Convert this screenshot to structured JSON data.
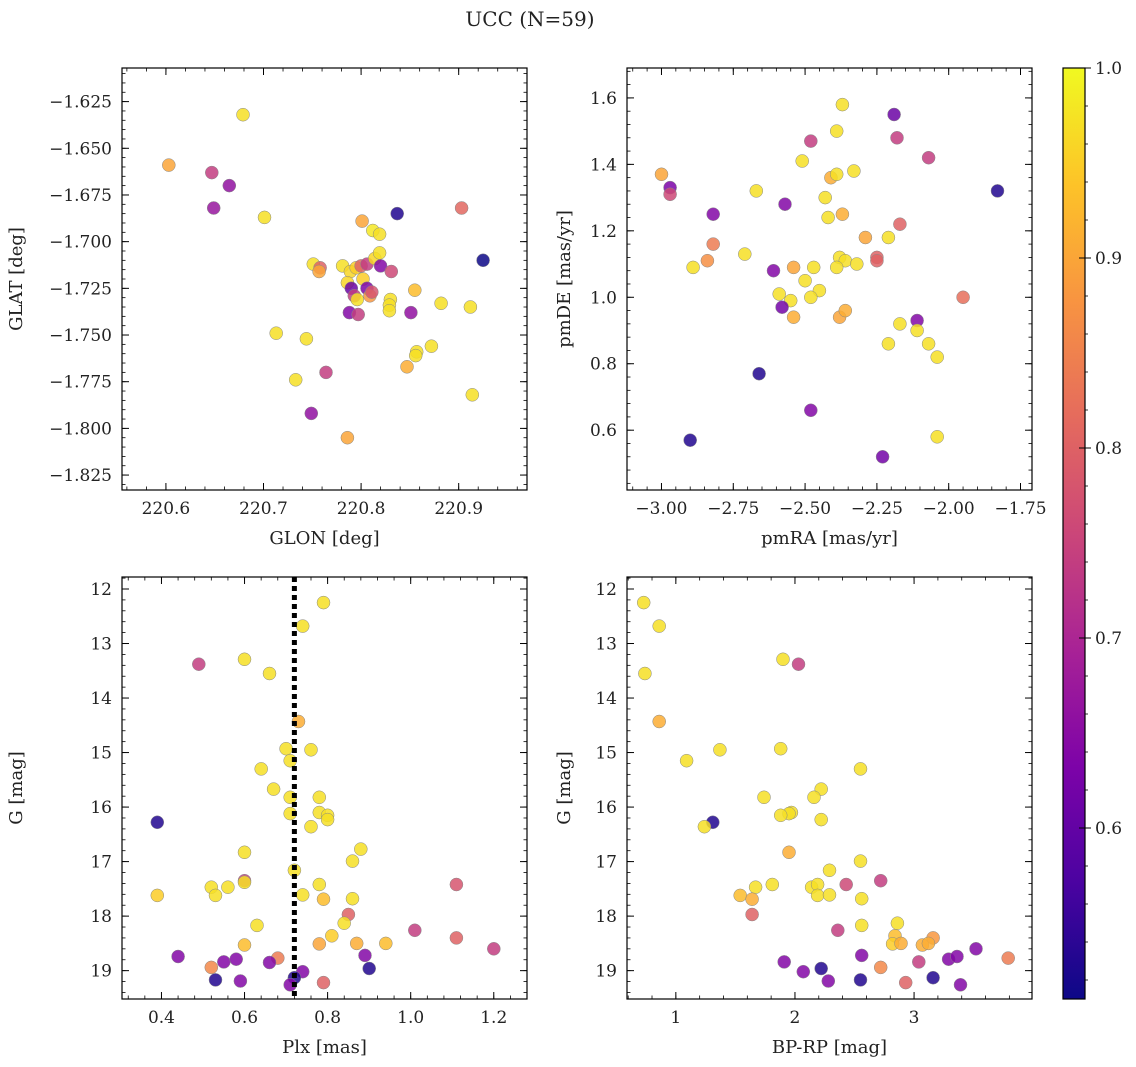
{
  "figure": {
    "title": "UCC (N=59)"
  },
  "colorbar": {
    "min": 0.51,
    "max": 1.0,
    "ticks": [
      0.6,
      0.7,
      0.8,
      0.9,
      1.0
    ],
    "tick_labels": [
      "0.6",
      "0.7",
      "0.8",
      "0.9",
      "1.0"
    ],
    "colormap": "plasma"
  },
  "chart_data": [
    {
      "type": "scatter",
      "xlabel": "GLON [deg]",
      "ylabel": "GLAT [deg]",
      "xlim": [
        220.555,
        220.97
      ],
      "ylim": [
        -1.833,
        -1.607
      ],
      "y_inverted": false,
      "xticks": [
        220.6,
        220.7,
        220.8,
        220.9
      ],
      "xtick_labels": [
        "220.6",
        "220.7",
        "220.8",
        "220.9"
      ],
      "yticks": [
        -1.825,
        -1.8,
        -1.775,
        -1.75,
        -1.725,
        -1.7,
        -1.675,
        -1.65,
        -1.625
      ],
      "ytick_labels": [
        "−1.825",
        "−1.800",
        "−1.775",
        "−1.750",
        "−1.725",
        "−1.700",
        "−1.675",
        "−1.650",
        "−1.625"
      ],
      "points": [
        [
          220.679,
          -1.632,
          0.97
        ],
        [
          220.603,
          -1.659,
          0.9
        ],
        [
          220.647,
          -1.663,
          0.74
        ],
        [
          220.665,
          -1.67,
          0.66
        ],
        [
          220.649,
          -1.682,
          0.67
        ],
        [
          220.701,
          -1.687,
          0.97
        ],
        [
          220.903,
          -1.682,
          0.81
        ],
        [
          220.837,
          -1.685,
          0.53
        ],
        [
          220.801,
          -1.689,
          0.9
        ],
        [
          220.812,
          -1.694,
          0.98
        ],
        [
          220.819,
          -1.696,
          0.97
        ],
        [
          220.925,
          -1.71,
          0.51
        ],
        [
          220.751,
          -1.712,
          0.97
        ],
        [
          220.758,
          -1.714,
          0.8
        ],
        [
          220.757,
          -1.716,
          0.9
        ],
        [
          220.781,
          -1.713,
          0.97
        ],
        [
          220.789,
          -1.716,
          0.96
        ],
        [
          220.795,
          -1.714,
          0.95
        ],
        [
          220.8,
          -1.713,
          0.8
        ],
        [
          220.806,
          -1.712,
          0.74
        ],
        [
          220.814,
          -1.709,
          0.96
        ],
        [
          220.819,
          -1.706,
          0.97
        ],
        [
          220.82,
          -1.713,
          0.64
        ],
        [
          220.831,
          -1.716,
          0.76
        ],
        [
          220.802,
          -1.72,
          0.95
        ],
        [
          220.786,
          -1.722,
          0.96
        ],
        [
          220.79,
          -1.725,
          0.61
        ],
        [
          220.793,
          -1.729,
          0.74
        ],
        [
          220.806,
          -1.725,
          0.63
        ],
        [
          220.809,
          -1.729,
          0.88
        ],
        [
          220.811,
          -1.727,
          0.78
        ],
        [
          220.796,
          -1.731,
          0.97
        ],
        [
          220.83,
          -1.731,
          0.97
        ],
        [
          220.829,
          -1.734,
          0.97
        ],
        [
          220.829,
          -1.737,
          0.97
        ],
        [
          220.855,
          -1.726,
          0.93
        ],
        [
          220.788,
          -1.738,
          0.64
        ],
        [
          220.797,
          -1.739,
          0.74
        ],
        [
          220.851,
          -1.738,
          0.66
        ],
        [
          220.882,
          -1.733,
          0.97
        ],
        [
          220.912,
          -1.735,
          0.97
        ],
        [
          220.713,
          -1.749,
          0.97
        ],
        [
          220.744,
          -1.752,
          0.97
        ],
        [
          220.872,
          -1.756,
          0.97
        ],
        [
          220.857,
          -1.759,
          0.97
        ],
        [
          220.856,
          -1.761,
          0.97
        ],
        [
          220.847,
          -1.767,
          0.91
        ],
        [
          220.733,
          -1.774,
          0.97
        ],
        [
          220.764,
          -1.77,
          0.74
        ],
        [
          220.749,
          -1.792,
          0.66
        ],
        [
          220.914,
          -1.782,
          0.97
        ],
        [
          220.786,
          -1.805,
          0.9
        ]
      ]
    },
    {
      "type": "scatter",
      "xlabel": "pmRA [mas/yr]",
      "ylabel": "pmDE [mas/yr]",
      "xlim": [
        -3.12,
        -1.71
      ],
      "ylim": [
        0.42,
        1.69
      ],
      "y_inverted": false,
      "xticks": [
        -3.0,
        -2.75,
        -2.5,
        -2.25,
        -2.0,
        -1.75
      ],
      "xtick_labels": [
        "−3.00",
        "−2.75",
        "−2.50",
        "−2.25",
        "−2.00",
        "−1.75"
      ],
      "yticks": [
        0.6,
        0.8,
        1.0,
        1.2,
        1.4,
        1.6
      ],
      "ytick_labels": [
        "0.6",
        "0.8",
        "1.0",
        "1.2",
        "1.4",
        "1.6"
      ],
      "points": [
        [
          -2.37,
          1.58,
          0.97
        ],
        [
          -2.19,
          1.55,
          0.61
        ],
        [
          -2.39,
          1.5,
          0.97
        ],
        [
          -2.48,
          1.47,
          0.74
        ],
        [
          -2.18,
          1.48,
          0.74
        ],
        [
          -2.07,
          1.42,
          0.74
        ],
        [
          -2.51,
          1.41,
          0.97
        ],
        [
          -3.0,
          1.37,
          0.9
        ],
        [
          -2.97,
          1.33,
          0.63
        ],
        [
          -2.97,
          1.31,
          0.76
        ],
        [
          -2.67,
          1.32,
          0.97
        ],
        [
          -1.83,
          1.32,
          0.53
        ],
        [
          -2.41,
          1.36,
          0.91
        ],
        [
          -2.39,
          1.37,
          0.97
        ],
        [
          -2.33,
          1.38,
          0.97
        ],
        [
          -2.43,
          1.3,
          0.97
        ],
        [
          -2.57,
          1.28,
          0.64
        ],
        [
          -2.37,
          1.25,
          0.91
        ],
        [
          -2.82,
          1.25,
          0.64
        ],
        [
          -2.42,
          1.24,
          0.97
        ],
        [
          -2.17,
          1.22,
          0.8
        ],
        [
          -2.29,
          1.18,
          0.9
        ],
        [
          -2.21,
          1.18,
          0.97
        ],
        [
          -2.82,
          1.16,
          0.84
        ],
        [
          -2.71,
          1.13,
          0.97
        ],
        [
          -2.84,
          1.11,
          0.87
        ],
        [
          -2.25,
          1.12,
          0.8
        ],
        [
          -2.25,
          1.11,
          0.8
        ],
        [
          -2.38,
          1.12,
          0.97
        ],
        [
          -2.36,
          1.11,
          0.97
        ],
        [
          -2.32,
          1.1,
          0.97
        ],
        [
          -2.89,
          1.09,
          0.97
        ],
        [
          -2.61,
          1.08,
          0.64
        ],
        [
          -2.54,
          1.09,
          0.9
        ],
        [
          -2.47,
          1.09,
          0.97
        ],
        [
          -2.39,
          1.09,
          0.97
        ],
        [
          -2.5,
          1.05,
          0.97
        ],
        [
          -2.45,
          1.02,
          0.97
        ],
        [
          -2.59,
          1.01,
          0.97
        ],
        [
          -2.55,
          0.99,
          0.97
        ],
        [
          -1.95,
          1.0,
          0.82
        ],
        [
          -2.48,
          1.0,
          0.97
        ],
        [
          -2.58,
          0.97,
          0.62
        ],
        [
          -2.38,
          0.94,
          0.9
        ],
        [
          -2.54,
          0.94,
          0.91
        ],
        [
          -2.36,
          0.96,
          0.91
        ],
        [
          -2.17,
          0.92,
          0.97
        ],
        [
          -2.11,
          0.93,
          0.64
        ],
        [
          -2.11,
          0.9,
          0.97
        ],
        [
          -2.07,
          0.86,
          0.97
        ],
        [
          -2.21,
          0.86,
          0.97
        ],
        [
          -2.04,
          0.82,
          0.97
        ],
        [
          -2.66,
          0.77,
          0.53
        ],
        [
          -2.48,
          0.66,
          0.64
        ],
        [
          -2.9,
          0.57,
          0.53
        ],
        [
          -2.04,
          0.58,
          0.97
        ],
        [
          -2.23,
          0.52,
          0.62
        ]
      ]
    },
    {
      "type": "scatter",
      "xlabel": "Plx [mas]",
      "ylabel": "G [mag]",
      "xlim": [
        0.305,
        1.28
      ],
      "ylim": [
        19.52,
        11.78
      ],
      "y_inverted": true,
      "xticks": [
        0.4,
        0.6,
        0.8,
        1.0,
        1.2
      ],
      "xtick_labels": [
        "0.4",
        "0.6",
        "0.8",
        "1.0",
        "1.2"
      ],
      "yticks": [
        12,
        13,
        14,
        15,
        16,
        17,
        18,
        19
      ],
      "ytick_labels": [
        "12",
        "13",
        "14",
        "15",
        "16",
        "17",
        "18",
        "19"
      ],
      "vline": 0.72,
      "points": [
        [
          0.79,
          12.25,
          0.97
        ],
        [
          0.74,
          12.68,
          0.97
        ],
        [
          0.49,
          13.38,
          0.74
        ],
        [
          0.6,
          13.29,
          0.97
        ],
        [
          0.66,
          13.55,
          0.97
        ],
        [
          0.73,
          14.43,
          0.91
        ],
        [
          0.7,
          14.93,
          0.97
        ],
        [
          0.76,
          14.95,
          0.97
        ],
        [
          0.71,
          15.15,
          0.97
        ],
        [
          0.64,
          15.3,
          0.97
        ],
        [
          0.67,
          15.67,
          0.97
        ],
        [
          0.78,
          15.82,
          0.97
        ],
        [
          0.71,
          15.82,
          0.97
        ],
        [
          0.78,
          16.1,
          0.97
        ],
        [
          0.8,
          16.15,
          0.97
        ],
        [
          0.71,
          16.12,
          0.97
        ],
        [
          0.8,
          16.23,
          0.97
        ],
        [
          0.76,
          16.36,
          0.97
        ],
        [
          0.39,
          16.28,
          0.53
        ],
        [
          0.6,
          16.83,
          0.97
        ],
        [
          0.88,
          16.77,
          0.97
        ],
        [
          0.86,
          16.99,
          0.97
        ],
        [
          0.72,
          17.16,
          0.97
        ],
        [
          0.6,
          17.35,
          0.74
        ],
        [
          0.6,
          17.38,
          0.97
        ],
        [
          0.52,
          17.47,
          0.97
        ],
        [
          0.56,
          17.47,
          0.97
        ],
        [
          0.78,
          17.42,
          0.97
        ],
        [
          1.11,
          17.42,
          0.78
        ],
        [
          0.39,
          17.62,
          0.95
        ],
        [
          0.53,
          17.62,
          0.97
        ],
        [
          0.74,
          17.61,
          0.97
        ],
        [
          0.79,
          17.69,
          0.93
        ],
        [
          0.86,
          17.68,
          0.97
        ],
        [
          0.85,
          17.97,
          0.8
        ],
        [
          0.63,
          18.17,
          0.97
        ],
        [
          0.84,
          18.13,
          0.97
        ],
        [
          0.81,
          18.36,
          0.95
        ],
        [
          1.01,
          18.26,
          0.74
        ],
        [
          1.11,
          18.4,
          0.8
        ],
        [
          0.6,
          18.53,
          0.93
        ],
        [
          0.78,
          18.51,
          0.9
        ],
        [
          0.87,
          18.5,
          0.91
        ],
        [
          0.94,
          18.5,
          0.93
        ],
        [
          1.2,
          18.6,
          0.74
        ],
        [
          0.44,
          18.74,
          0.64
        ],
        [
          0.55,
          18.84,
          0.64
        ],
        [
          0.58,
          18.79,
          0.64
        ],
        [
          0.68,
          18.77,
          0.84
        ],
        [
          0.66,
          18.85,
          0.64
        ],
        [
          0.89,
          18.72,
          0.64
        ],
        [
          0.52,
          18.94,
          0.86
        ],
        [
          0.9,
          18.96,
          0.53
        ],
        [
          0.74,
          19.02,
          0.64
        ],
        [
          0.53,
          19.17,
          0.53
        ],
        [
          0.59,
          19.19,
          0.64
        ],
        [
          0.72,
          19.13,
          0.53
        ],
        [
          0.71,
          19.26,
          0.64
        ],
        [
          0.79,
          19.22,
          0.8
        ]
      ]
    },
    {
      "type": "scatter",
      "xlabel": "BP-RP [mag]",
      "ylabel": "G [mag]",
      "xlim": [
        0.59,
        3.99
      ],
      "ylim": [
        19.52,
        11.78
      ],
      "y_inverted": true,
      "xticks": [
        1,
        2,
        3
      ],
      "xtick_labels": [
        "1",
        "2",
        "3"
      ],
      "yticks": [
        12,
        13,
        14,
        15,
        16,
        17,
        18,
        19
      ],
      "ytick_labels": [
        "12",
        "13",
        "14",
        "15",
        "16",
        "17",
        "18",
        "19"
      ],
      "points": [
        [
          0.73,
          12.25,
          0.97
        ],
        [
          0.86,
          12.68,
          0.97
        ],
        [
          0.74,
          13.55,
          0.97
        ],
        [
          1.9,
          13.29,
          0.97
        ],
        [
          2.03,
          13.38,
          0.74
        ],
        [
          0.86,
          14.43,
          0.91
        ],
        [
          1.37,
          14.95,
          0.97
        ],
        [
          1.88,
          14.93,
          0.97
        ],
        [
          1.09,
          15.15,
          0.97
        ],
        [
          2.55,
          15.3,
          0.97
        ],
        [
          2.22,
          15.67,
          0.97
        ],
        [
          1.74,
          15.82,
          0.97
        ],
        [
          2.16,
          15.82,
          0.97
        ],
        [
          1.97,
          16.1,
          0.97
        ],
        [
          1.95,
          16.12,
          0.97
        ],
        [
          1.88,
          16.15,
          0.97
        ],
        [
          2.22,
          16.23,
          0.97
        ],
        [
          1.31,
          16.28,
          0.53
        ],
        [
          1.24,
          16.36,
          0.97
        ],
        [
          1.95,
          16.83,
          0.91
        ],
        [
          2.55,
          16.99,
          0.97
        ],
        [
          2.29,
          17.16,
          0.97
        ],
        [
          2.72,
          17.35,
          0.74
        ],
        [
          1.67,
          17.47,
          0.97
        ],
        [
          1.81,
          17.42,
          0.97
        ],
        [
          2.14,
          17.47,
          0.97
        ],
        [
          2.19,
          17.42,
          0.97
        ],
        [
          2.43,
          17.42,
          0.76
        ],
        [
          1.54,
          17.62,
          0.93
        ],
        [
          1.64,
          17.69,
          0.91
        ],
        [
          2.19,
          17.62,
          0.97
        ],
        [
          2.29,
          17.61,
          0.97
        ],
        [
          2.56,
          17.68,
          0.97
        ],
        [
          1.64,
          17.97,
          0.8
        ],
        [
          2.56,
          18.17,
          0.97
        ],
        [
          2.86,
          18.13,
          0.97
        ],
        [
          2.36,
          18.26,
          0.74
        ],
        [
          2.84,
          18.36,
          0.93
        ],
        [
          3.16,
          18.4,
          0.88
        ],
        [
          2.82,
          18.51,
          0.95
        ],
        [
          2.89,
          18.5,
          0.91
        ],
        [
          3.07,
          18.53,
          0.91
        ],
        [
          3.12,
          18.5,
          0.91
        ],
        [
          3.52,
          18.6,
          0.64
        ],
        [
          2.56,
          18.72,
          0.64
        ],
        [
          3.29,
          18.79,
          0.64
        ],
        [
          3.36,
          18.74,
          0.64
        ],
        [
          3.79,
          18.77,
          0.84
        ],
        [
          1.91,
          18.84,
          0.64
        ],
        [
          3.04,
          18.84,
          0.74
        ],
        [
          2.72,
          18.94,
          0.86
        ],
        [
          2.22,
          18.96,
          0.53
        ],
        [
          2.07,
          19.02,
          0.64
        ],
        [
          3.16,
          19.13,
          0.53
        ],
        [
          2.28,
          19.19,
          0.64
        ],
        [
          2.55,
          19.17,
          0.53
        ],
        [
          2.93,
          19.22,
          0.8
        ],
        [
          3.39,
          19.26,
          0.64
        ]
      ]
    }
  ]
}
